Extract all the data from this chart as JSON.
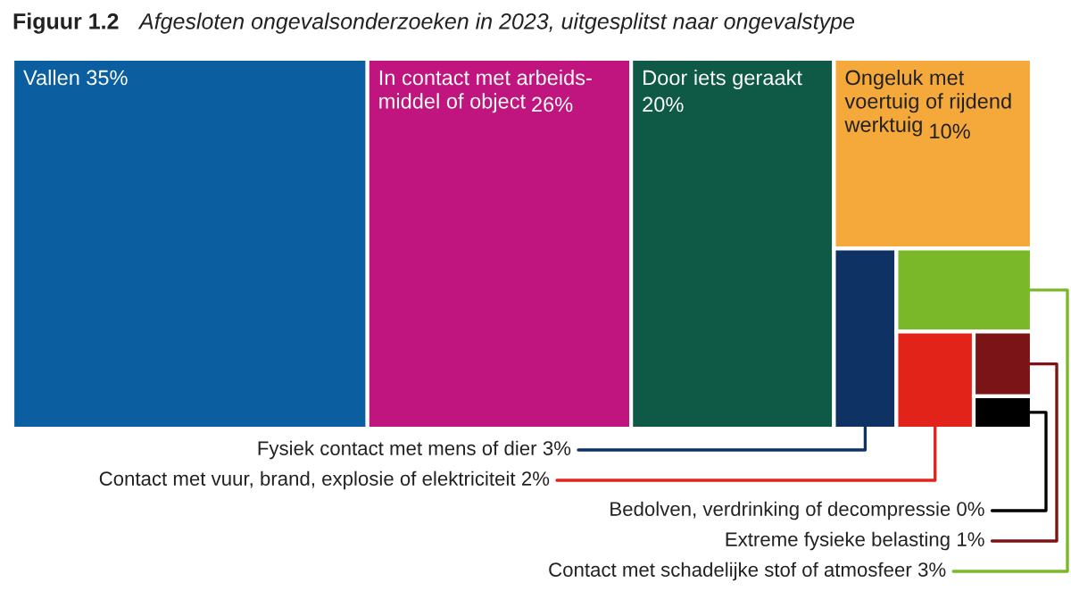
{
  "chart_data": {
    "type": "other",
    "title": "Afgesloten ongevalsonderzoeken in 2023, uitgesplitst naar ongevalstype",
    "annotations": [
      "Figuur 1.2"
    ],
    "categories": [
      "Vallen",
      "In contact met arbeids-\nmiddel of object",
      "Door iets geraakt",
      "Ongeluk met\nvoertuig of rijdend\nwerktuig",
      "Fysiek contact met mens of dier",
      "Contact met schadelijke stof of atmosfeer",
      "Contact met vuur, brand, explosie of elektriciteit",
      "Extreme fysieke belasting",
      "Bedolven, verdrinking of decompressie"
    ],
    "values": [
      35,
      26,
      20,
      10,
      3,
      3,
      2,
      1,
      0
    ],
    "value_labels": [
      "35%",
      "26%",
      "20%",
      "10%",
      "3%",
      "3%",
      "2%",
      "1%",
      "0%"
    ],
    "colors": [
      "#0b5fa0",
      "#c0157f",
      "#0f5a46",
      "#f6a93b",
      "#0e3264",
      "#7ab829",
      "#e2231a",
      "#7b1416",
      "#000000"
    ]
  }
}
